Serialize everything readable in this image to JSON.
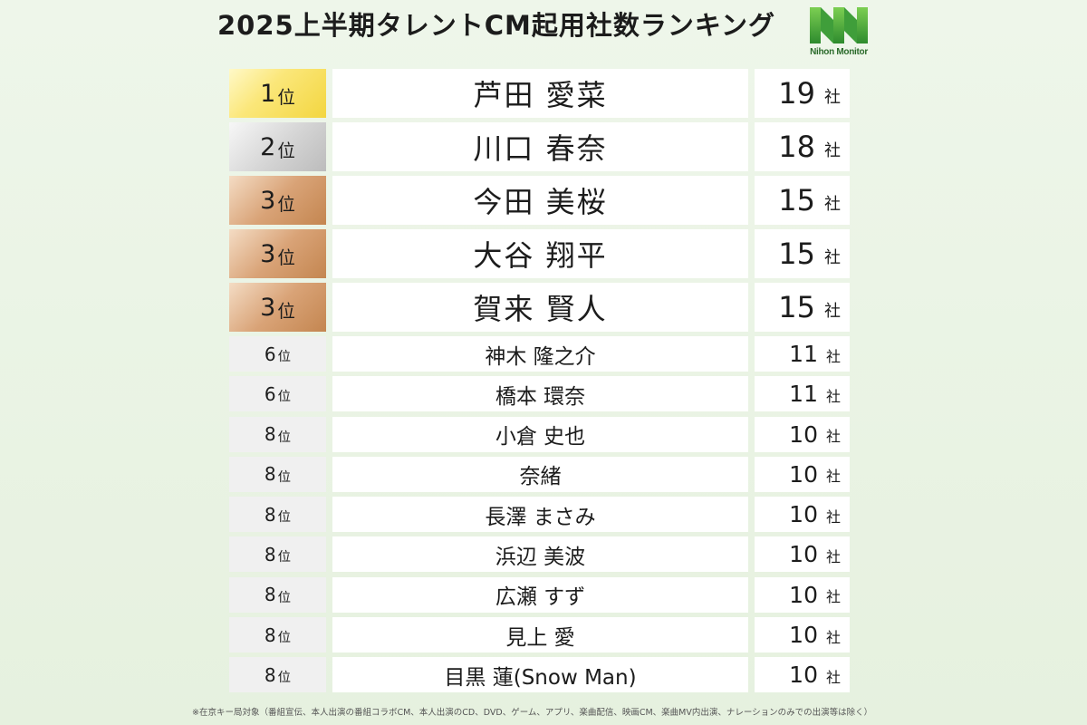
{
  "title": "2025上半期タレントCM起用社数ランキング",
  "logo": {
    "text": "Nihon Monitor",
    "color": "#2e8b2e"
  },
  "rank_suffix": "位",
  "count_unit": "社",
  "medal_colors": {
    "gold": "#f3d640",
    "silver": "#c8c8c8",
    "bronze": "#c98b57"
  },
  "rows": [
    {
      "rank": "1",
      "name": "芦田 愛菜",
      "count": "19"
    },
    {
      "rank": "2",
      "name": "川口 春奈",
      "count": "18"
    },
    {
      "rank": "3",
      "name": "今田 美桜",
      "count": "15"
    },
    {
      "rank": "3",
      "name": "大谷 翔平",
      "count": "15"
    },
    {
      "rank": "3",
      "name": "賀来 賢人",
      "count": "15"
    },
    {
      "rank": "6",
      "name": "神木 隆之介",
      "count": "11"
    },
    {
      "rank": "6",
      "name": "橋本 環奈",
      "count": "11"
    },
    {
      "rank": "8",
      "name": "小倉 史也",
      "count": "10"
    },
    {
      "rank": "8",
      "name": "奈緒",
      "count": "10"
    },
    {
      "rank": "8",
      "name": "長澤 まさみ",
      "count": "10"
    },
    {
      "rank": "8",
      "name": "浜辺 美波",
      "count": "10"
    },
    {
      "rank": "8",
      "name": "広瀬 すず",
      "count": "10"
    },
    {
      "rank": "8",
      "name": "見上 愛",
      "count": "10"
    },
    {
      "rank": "8",
      "name": "目黒 蓮(Snow Man)",
      "count": "10"
    }
  ],
  "footnote": "※在京キー局対象（番組宣伝、本人出演の番組コラボCM、本人出演のCD、DVD、ゲーム、アプリ、楽曲配信、映画CM、楽曲MV内出演、ナレーションのみでの出演等は除く）"
}
